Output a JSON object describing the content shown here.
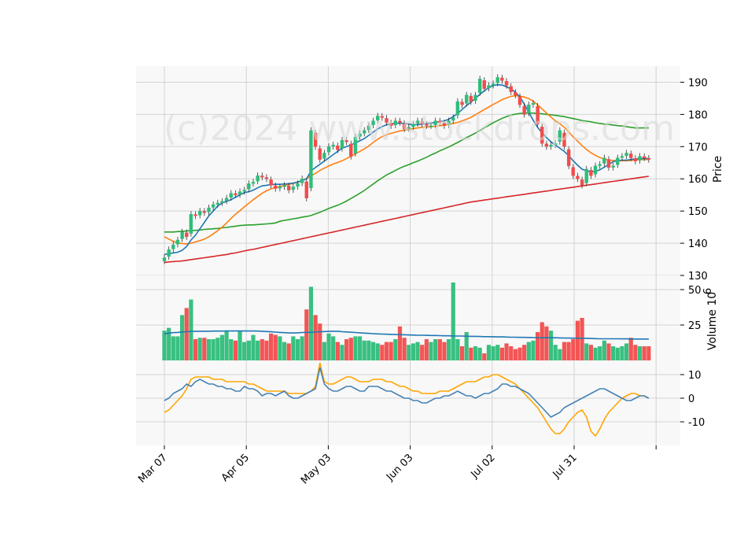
{
  "chart_data": {
    "type": "candlestick",
    "watermark": "(c)2024 www.stockdrops.com",
    "x_tick_labels": [
      "Mar 07",
      "Apr 05",
      "May 03",
      "Jun 03",
      "Jul 02",
      "Jul 31"
    ],
    "price_panel": {
      "ylabel": "Price",
      "ylim": [
        130,
        195
      ],
      "yticks": [
        130,
        140,
        150,
        160,
        170,
        180,
        190
      ],
      "close": [
        135.5,
        138,
        139.5,
        141,
        143.5,
        142,
        149,
        148.5,
        150,
        149.5,
        151,
        152,
        152.5,
        153,
        154,
        155.5,
        155,
        156,
        156.5,
        158.5,
        159,
        161,
        160.5,
        160,
        158,
        157,
        157.5,
        158,
        156.5,
        157.5,
        158.5,
        160,
        154,
        175,
        170,
        166,
        168,
        170,
        170.5,
        169,
        172,
        171.5,
        167,
        173,
        174,
        175,
        176.5,
        178,
        179.5,
        179,
        177.5,
        176.5,
        178,
        177.5,
        175.5,
        176,
        177,
        178,
        177,
        176.5,
        176.5,
        178,
        177.5,
        176.5,
        178,
        179,
        184,
        183,
        186,
        184,
        186,
        191,
        188,
        189,
        189.5,
        191.5,
        190.5,
        189,
        187,
        186,
        183,
        180,
        183,
        183.5,
        177,
        171,
        170,
        170.5,
        171,
        175,
        170,
        164,
        161,
        160,
        158,
        163,
        161,
        164,
        164.5,
        166.5,
        163.5,
        164,
        166.5,
        167,
        168,
        166.5,
        165.5,
        167,
        166.5,
        166
      ],
      "ma_blue": [
        136.5,
        136.8,
        137,
        137.2,
        137.8,
        139,
        141,
        142.5,
        144.5,
        146.5,
        148.5,
        150,
        151.5,
        152.5,
        153,
        153.5,
        154.3,
        155,
        155.7,
        156,
        156.5,
        157.2,
        157.8,
        158,
        158.2,
        158.3,
        158.3,
        158.4,
        158.5,
        158.7,
        159,
        159.5,
        160,
        162.5,
        163.5,
        164.5,
        165.5,
        166.5,
        167.5,
        168.5,
        169.5,
        170,
        170.5,
        171.2,
        171.8,
        172.5,
        173.5,
        174.5,
        175.5,
        176.2,
        176.8,
        177,
        177.2,
        177.3,
        177.2,
        177,
        176.8,
        176.8,
        177,
        177.2,
        177.3,
        177.5,
        177.8,
        178,
        178.5,
        179.3,
        180.3,
        181.5,
        182.7,
        183.8,
        185,
        186.2,
        187.3,
        188.3,
        189,
        189.2,
        189.1,
        188.6,
        187.9,
        186.9,
        185.4,
        183.2,
        180.7,
        178.2,
        176,
        174.2,
        172.8,
        171.5,
        170.5,
        169.5,
        168.5,
        167.2,
        165.6,
        164.2,
        163,
        162.5,
        162.2,
        162.3,
        162.8,
        163.6,
        164.5,
        165.3,
        165.7,
        165.8,
        165.8,
        166,
        166.2,
        166.3,
        166.3,
        166.3
      ],
      "ma_orange": [
        142,
        141.3,
        140.6,
        140.1,
        139.9,
        139.8,
        140,
        140.4,
        140.8,
        141.3,
        142,
        142.9,
        143.9,
        145,
        146.3,
        147.7,
        149,
        150.1,
        151.3,
        152.4,
        153.5,
        154.5,
        155.5,
        156.3,
        156.9,
        157.3,
        157.6,
        157.9,
        158.2,
        158.6,
        158.9,
        159.4,
        160.1,
        160.9,
        161.7,
        162.6,
        163.3,
        164,
        164.6,
        165.1,
        165.6,
        166.3,
        167,
        167.8,
        168.5,
        169.3,
        170.2,
        171.3,
        172.3,
        173.1,
        173.7,
        174.1,
        174.5,
        174.9,
        175.1,
        175.3,
        175.6,
        175.8,
        176,
        176.1,
        176.2,
        176.3,
        176.5,
        176.7,
        176.9,
        177.2,
        177.5,
        178,
        178.5,
        179.1,
        179.9,
        180.7,
        181.5,
        182.3,
        183.1,
        183.8,
        184.6,
        185.1,
        185.6,
        185.8,
        185.7,
        185.4,
        184.9,
        184.1,
        183,
        181.7,
        180.4,
        179.2,
        178,
        177.1,
        176,
        174.6,
        173,
        171.7,
        170.3,
        169.1,
        168.1,
        167.3,
        166.6,
        166.1,
        165.8,
        165.7,
        165.6,
        165.6,
        165.6,
        165.7,
        165.9,
        166,
        166,
        166
      ],
      "ma_green": [
        143.5,
        143.5,
        143.5,
        143.6,
        143.7,
        143.8,
        143.9,
        144,
        144.1,
        144.3,
        144.4,
        144.5,
        144.6,
        144.8,
        144.9,
        145.1,
        145.3,
        145.5,
        145.6,
        145.7,
        145.7,
        145.8,
        145.9,
        146,
        146.1,
        146.3,
        146.8,
        147.1,
        147.3,
        147.6,
        147.8,
        148.1,
        148.3,
        148.6,
        149.1,
        149.6,
        150.2,
        150.8,
        151.3,
        151.8,
        152.4,
        153.1,
        153.9,
        154.7,
        155.5,
        156.4,
        157.4,
        158.4,
        159.4,
        160.3,
        161.2,
        161.9,
        162.6,
        163.3,
        163.9,
        164.4,
        165,
        165.5,
        166.1,
        166.7,
        167.4,
        168,
        168.7,
        169.3,
        169.9,
        170.6,
        171.3,
        172,
        172.8,
        173.5,
        174.2,
        175,
        175.8,
        176.6,
        177.4,
        178.1,
        178.8,
        179.3,
        179.8,
        180.1,
        180.3,
        180.4,
        180.4,
        180.4,
        180.3,
        180.2,
        180,
        179.9,
        179.7,
        179.5,
        179.3,
        179,
        178.7,
        178.4,
        178.1,
        177.9,
        177.7,
        177.4,
        177.2,
        177,
        176.9,
        176.7,
        176.5,
        176.4,
        176.2,
        176,
        175.8,
        175.8,
        175.8,
        175.8
      ],
      "ma_red": [
        134,
        134.2,
        134.3,
        134.4,
        134.5,
        134.7,
        134.9,
        135.1,
        135.3,
        135.5,
        135.7,
        135.9,
        136.1,
        136.3,
        136.5,
        136.8,
        137,
        137.3,
        137.6,
        137.9,
        138.1,
        138.4,
        138.7,
        139,
        139.3,
        139.6,
        139.9,
        140.2,
        140.5,
        140.8,
        141.1,
        141.4,
        141.7,
        142,
        142.3,
        142.6,
        142.9,
        143.2,
        143.5,
        143.8,
        144.1,
        144.4,
        144.7,
        145,
        145.3,
        145.6,
        145.9,
        146.2,
        146.5,
        146.8,
        147.1,
        147.4,
        147.7,
        148,
        148.3,
        148.6,
        148.9,
        149.2,
        149.5,
        149.8,
        150.1,
        150.4,
        150.7,
        151,
        151.3,
        151.6,
        151.9,
        152.2,
        152.5,
        152.8,
        153,
        153.2,
        153.4,
        153.6,
        153.8,
        154,
        154.2,
        154.4,
        154.6,
        154.8,
        155,
        155.2,
        155.4,
        155.6,
        155.8,
        156,
        156.2,
        156.4,
        156.6,
        156.8,
        157,
        157.2,
        157.4,
        157.6,
        157.8,
        158,
        158.2,
        158.4,
        158.6,
        158.8,
        159,
        159.2,
        159.4,
        159.6,
        159.8,
        160,
        160.2,
        160.4,
        160.6,
        160.8
      ],
      "colors": {
        "up": "#2ebd7a",
        "down": "#f24c4c",
        "ma_blue": "#1f77b4",
        "ma_orange": "#ff7f0e",
        "ma_green": "#2ca02c",
        "ma_red": "#d62728"
      }
    },
    "volume_panel": {
      "ylabel": "Volume  10^6",
      "ylim": [
        0,
        60
      ],
      "yticks": [
        25,
        50
      ],
      "volume": [
        21,
        23,
        17,
        17,
        32,
        37,
        43,
        15,
        16,
        16,
        15,
        15,
        16,
        18,
        21,
        15,
        14,
        21,
        13,
        14,
        18,
        14,
        15,
        14,
        19,
        18,
        17,
        13,
        12,
        17,
        15,
        17,
        36,
        52,
        32,
        26,
        13,
        19,
        17,
        13,
        11,
        15,
        16,
        17,
        17,
        14,
        14,
        13,
        12,
        11,
        13,
        13,
        15,
        24,
        16,
        11,
        12,
        13,
        11,
        15,
        13,
        15,
        15,
        13,
        15,
        55,
        15,
        10,
        20,
        9,
        10,
        9,
        5,
        11,
        10,
        11,
        9,
        12,
        10,
        8,
        9,
        11,
        13,
        14,
        20,
        27,
        24,
        21,
        11,
        8,
        13,
        13,
        15,
        28,
        30,
        12,
        11,
        9,
        10,
        14,
        12,
        10,
        9,
        10,
        12,
        16,
        11,
        10,
        10,
        10
      ],
      "volume_ma": [
        18.8,
        19.3,
        19.6,
        19.8,
        20.1,
        20.3,
        20.5,
        20.5,
        20.6,
        20.6,
        20.6,
        20.7,
        20.7,
        20.7,
        20.8,
        20.8,
        20.8,
        20.8,
        20.8,
        20.8,
        20.8,
        20.7,
        20.6,
        20.4,
        20.2,
        20,
        19.8,
        19.6,
        19.4,
        19.4,
        19.5,
        19.7,
        19.8,
        19.9,
        20,
        20.2,
        20.4,
        20.5,
        20.6,
        20.6,
        20.3,
        20.1,
        19.9,
        19.7,
        19.5,
        19.3,
        19.1,
        18.9,
        18.7,
        18.6,
        18.5,
        18.4,
        18.3,
        18.2,
        18.1,
        18,
        17.9,
        17.8,
        17.8,
        17.7,
        17.6,
        17.6,
        17.5,
        17.4,
        17.4,
        17.3,
        17.2,
        17.2,
        17.1,
        17,
        17,
        16.9,
        16.8,
        16.8,
        16.7,
        16.6,
        16.6,
        16.5,
        16.4,
        16.4,
        16.3,
        16.3,
        16.2,
        16.1,
        16.1,
        16,
        16,
        16,
        16,
        15.9,
        15.8,
        15.8,
        15.7,
        15.7,
        15.6,
        15.6,
        15.5,
        15.4,
        15.3,
        15.3,
        15.3,
        15.3,
        15.3,
        15.2,
        15.2,
        15.1,
        15.1,
        15.1,
        15.1,
        15.1
      ],
      "colors": {
        "ma": "#1f77b4"
      }
    },
    "osc_panel": {
      "ylim": [
        -20,
        16
      ],
      "yticks": [
        -10,
        0,
        10
      ],
      "blue": [
        -1,
        0,
        2,
        3,
        4,
        6,
        5,
        7,
        8,
        7,
        6,
        6,
        5,
        5,
        4,
        4,
        3,
        3,
        5,
        4,
        4,
        3,
        1,
        2,
        2,
        1,
        2,
        3,
        1,
        0,
        0,
        1,
        2,
        3,
        4,
        13,
        6,
        4,
        3,
        3,
        4,
        5,
        5,
        4,
        3,
        3,
        5,
        5,
        5,
        4,
        3,
        3,
        2,
        1,
        0,
        0,
        -1,
        -1,
        -2,
        -2,
        -1,
        0,
        0,
        1,
        1,
        2,
        3,
        2,
        1,
        1,
        0,
        1,
        2,
        2,
        3,
        4,
        6,
        6,
        5,
        5,
        4,
        3,
        2,
        0,
        -2,
        -4,
        -6,
        -8,
        -7,
        -6,
        -4,
        -3,
        -2,
        -1,
        0,
        1,
        2,
        3,
        4,
        4,
        3,
        2,
        1,
        0,
        -1,
        -1,
        0,
        1,
        1,
        0
      ],
      "orange": [
        -6,
        -5,
        -3,
        -1,
        1,
        4,
        8,
        9,
        9,
        9,
        9,
        8,
        8,
        8,
        7,
        7,
        7,
        7,
        7,
        6,
        6,
        5,
        4,
        3,
        3,
        3,
        3,
        3,
        2,
        2,
        2,
        2,
        2,
        3,
        5,
        15,
        7,
        6,
        6,
        7,
        8,
        9,
        9,
        8,
        7,
        7,
        7,
        8,
        8,
        8,
        7,
        7,
        6,
        5,
        5,
        4,
        3,
        3,
        2,
        2,
        2,
        2,
        3,
        3,
        3,
        4,
        5,
        6,
        7,
        7,
        7,
        8,
        9,
        9,
        10,
        10,
        9,
        8,
        7,
        6,
        4,
        2,
        0,
        -2,
        -4,
        -7,
        -10,
        -13,
        -15,
        -15,
        -13,
        -10,
        -8,
        -6,
        -5,
        -8,
        -14,
        -16,
        -13,
        -9,
        -6,
        -4,
        -2,
        0,
        1,
        2,
        2,
        1,
        1,
        0
      ],
      "colors": {
        "blue": "#4682b4",
        "orange": "#ffa500"
      }
    }
  }
}
